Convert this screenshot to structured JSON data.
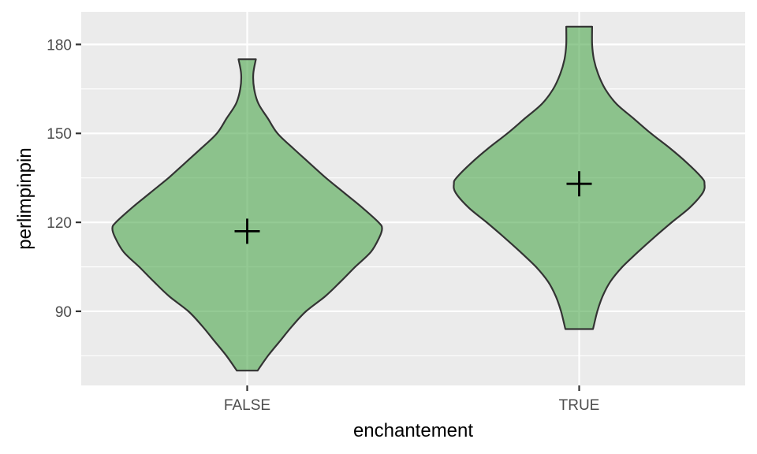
{
  "chart_data": {
    "type": "violin",
    "xlabel": "enchantement",
    "ylabel": "perlimpinpin",
    "categories": [
      "FALSE",
      "TRUE"
    ],
    "ylim": [
      65,
      191
    ],
    "yticks": [
      90,
      120,
      150,
      180
    ],
    "grid": true,
    "colors": {
      "panel_background": "#ebebeb",
      "grid_line": "#ffffff",
      "violin_fill": "#4ca64c",
      "violin_fill_opacity": 0.6,
      "violin_outline": "#333333",
      "mean_marker": "#000000"
    },
    "series": [
      {
        "category": "FALSE",
        "min": 70,
        "max": 175,
        "mean": 117,
        "density_profile": [
          [
            70,
            0.12
          ],
          [
            75,
            0.24
          ],
          [
            80,
            0.38
          ],
          [
            85,
            0.52
          ],
          [
            90,
            0.68
          ],
          [
            95,
            0.9
          ],
          [
            100,
            1.08
          ],
          [
            105,
            1.25
          ],
          [
            110,
            1.43
          ],
          [
            115,
            1.53
          ],
          [
            118,
            1.56
          ],
          [
            120,
            1.52
          ],
          [
            125,
            1.33
          ],
          [
            130,
            1.12
          ],
          [
            135,
            0.91
          ],
          [
            140,
            0.72
          ],
          [
            145,
            0.53
          ],
          [
            150,
            0.35
          ],
          [
            155,
            0.24
          ],
          [
            160,
            0.13
          ],
          [
            165,
            0.08
          ],
          [
            170,
            0.07
          ],
          [
            175,
            0.1
          ]
        ]
      },
      {
        "category": "TRUE",
        "min": 84,
        "max": 186,
        "mean": 133,
        "density_profile": [
          [
            84,
            0.16
          ],
          [
            90,
            0.21
          ],
          [
            95,
            0.27
          ],
          [
            100,
            0.36
          ],
          [
            105,
            0.5
          ],
          [
            110,
            0.68
          ],
          [
            115,
            0.87
          ],
          [
            120,
            1.07
          ],
          [
            125,
            1.28
          ],
          [
            130,
            1.43
          ],
          [
            133,
            1.45
          ],
          [
            135,
            1.42
          ],
          [
            140,
            1.25
          ],
          [
            145,
            1.05
          ],
          [
            150,
            0.83
          ],
          [
            155,
            0.63
          ],
          [
            160,
            0.43
          ],
          [
            165,
            0.3
          ],
          [
            170,
            0.22
          ],
          [
            175,
            0.17
          ],
          [
            180,
            0.15
          ],
          [
            186,
            0.15
          ]
        ]
      }
    ]
  }
}
